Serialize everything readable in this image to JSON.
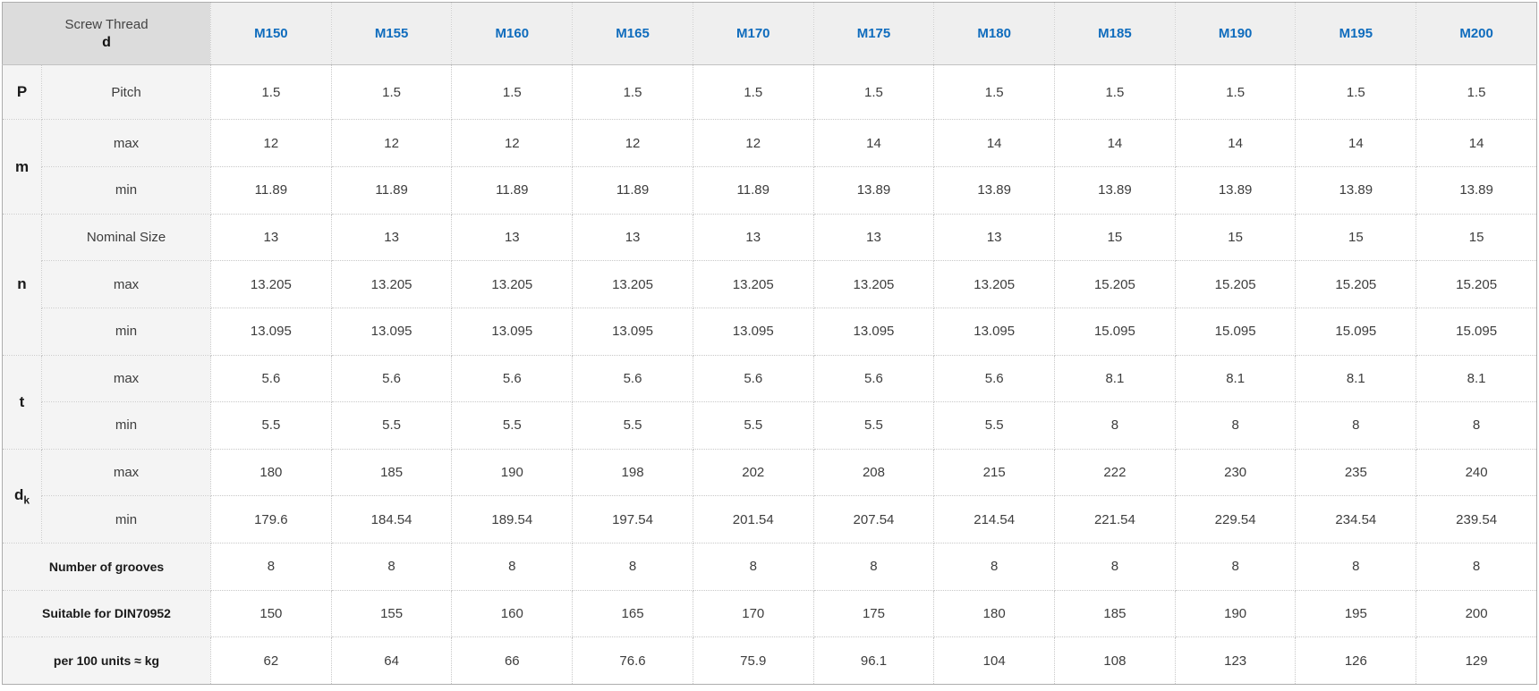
{
  "colors": {
    "accent_blue": "#0f6cbd",
    "corner_bg": "#dcdcdc",
    "column_header_bg": "#efefef",
    "label_bg": "#f4f4f4",
    "border": "#c8c8c8",
    "outer_border": "#adadad",
    "text": "#3d3d3d"
  },
  "table": {
    "header": {
      "corner_line1": "Screw Thread",
      "corner_line2": "d",
      "columns": [
        "M150",
        "M155",
        "M160",
        "M165",
        "M170",
        "M175",
        "M180",
        "M185",
        "M190",
        "M195",
        "M200"
      ]
    },
    "groups": [
      {
        "name": "p",
        "label": "P",
        "rows": [
          {
            "sub": "Pitch",
            "values": [
              "1.5",
              "1.5",
              "1.5",
              "1.5",
              "1.5",
              "1.5",
              "1.5",
              "1.5",
              "1.5",
              "1.5",
              "1.5"
            ]
          }
        ]
      },
      {
        "name": "m",
        "label": "m",
        "rows": [
          {
            "sub": "max",
            "values": [
              "12",
              "12",
              "12",
              "12",
              "12",
              "14",
              "14",
              "14",
              "14",
              "14",
              "14"
            ]
          },
          {
            "sub": "min",
            "values": [
              "11.89",
              "11.89",
              "11.89",
              "11.89",
              "11.89",
              "13.89",
              "13.89",
              "13.89",
              "13.89",
              "13.89",
              "13.89"
            ]
          }
        ]
      },
      {
        "name": "n",
        "label": "n",
        "rows": [
          {
            "sub": "Nominal Size",
            "values": [
              "13",
              "13",
              "13",
              "13",
              "13",
              "13",
              "13",
              "15",
              "15",
              "15",
              "15"
            ]
          },
          {
            "sub": "max",
            "values": [
              "13.205",
              "13.205",
              "13.205",
              "13.205",
              "13.205",
              "13.205",
              "13.205",
              "15.205",
              "15.205",
              "15.205",
              "15.205"
            ]
          },
          {
            "sub": "min",
            "values": [
              "13.095",
              "13.095",
              "13.095",
              "13.095",
              "13.095",
              "13.095",
              "13.095",
              "15.095",
              "15.095",
              "15.095",
              "15.095"
            ]
          }
        ]
      },
      {
        "name": "t",
        "label": "t",
        "rows": [
          {
            "sub": "max",
            "values": [
              "5.6",
              "5.6",
              "5.6",
              "5.6",
              "5.6",
              "5.6",
              "5.6",
              "8.1",
              "8.1",
              "8.1",
              "8.1"
            ]
          },
          {
            "sub": "min",
            "values": [
              "5.5",
              "5.5",
              "5.5",
              "5.5",
              "5.5",
              "5.5",
              "5.5",
              "8",
              "8",
              "8",
              "8"
            ]
          }
        ]
      },
      {
        "name": "dk",
        "label": "d",
        "label_sub": "k",
        "rows": [
          {
            "sub": "max",
            "values": [
              "180",
              "185",
              "190",
              "198",
              "202",
              "208",
              "215",
              "222",
              "230",
              "235",
              "240"
            ]
          },
          {
            "sub": "min",
            "values": [
              "179.6",
              "184.54",
              "189.54",
              "197.54",
              "201.54",
              "207.54",
              "214.54",
              "221.54",
              "229.54",
              "234.54",
              "239.54"
            ]
          }
        ]
      }
    ],
    "footer_rows": [
      {
        "name": "number-of-grooves",
        "label": "Number of grooves",
        "values": [
          "8",
          "8",
          "8",
          "8",
          "8",
          "8",
          "8",
          "8",
          "8",
          "8",
          "8"
        ]
      },
      {
        "name": "suitable-for-din70952",
        "label": "Suitable for DIN70952",
        "values": [
          "150",
          "155",
          "160",
          "165",
          "170",
          "175",
          "180",
          "185",
          "190",
          "195",
          "200"
        ]
      },
      {
        "name": "weight-per-100-units",
        "label": "per 100 units ≈ kg",
        "values": [
          "62",
          "64",
          "66",
          "76.6",
          "75.9",
          "96.1",
          "104",
          "108",
          "123",
          "126",
          "129"
        ]
      }
    ]
  }
}
